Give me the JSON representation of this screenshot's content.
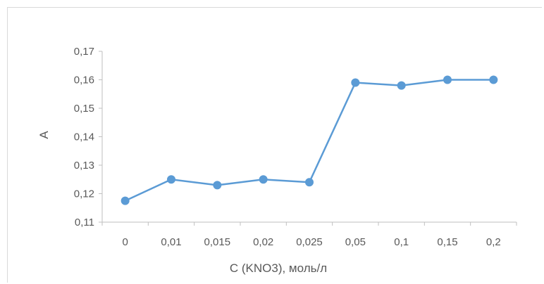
{
  "chart_data": {
    "type": "line",
    "categories": [
      "0",
      "0,01",
      "0,015",
      "0,02",
      "0,025",
      "0,05",
      "0,1",
      "0,15",
      "0,2"
    ],
    "series": [
      {
        "values": [
          0.1175,
          0.125,
          0.123,
          0.125,
          0.124,
          0.159,
          0.158,
          0.16,
          0.16
        ]
      }
    ],
    "xlabel": "C (KNO3), моль/л",
    "ylabel": "A",
    "ylim": [
      0.11,
      0.17
    ],
    "yticks": [
      0.11,
      0.12,
      0.13,
      0.14,
      0.15,
      0.16,
      0.17
    ],
    "ytick_labels": [
      "0,11",
      "0,12",
      "0,13",
      "0,14",
      "0,15",
      "0,16",
      "0,17"
    ],
    "grid": false,
    "legend": "none",
    "colors": {
      "series": "#5b9bd5",
      "axis": "#bfbfbf",
      "text": "#595959"
    }
  }
}
